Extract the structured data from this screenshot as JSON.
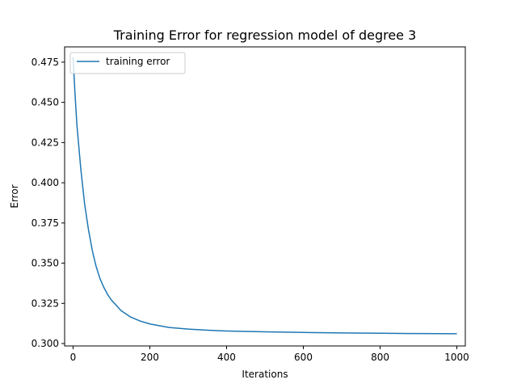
{
  "chart_data": {
    "type": "line",
    "title": "Training Error for regression model of degree 3",
    "xlabel": "Iterations",
    "ylabel": "Error",
    "xlim": [
      -22,
      1022
    ],
    "ylim": [
      0.2985,
      0.4845
    ],
    "xticks": [
      0,
      200,
      400,
      600,
      800,
      1000
    ],
    "xtick_labels": [
      "0",
      "200",
      "400",
      "600",
      "800",
      "1000"
    ],
    "yticks": [
      0.3,
      0.325,
      0.35,
      0.375,
      0.4,
      0.425,
      0.45,
      0.475
    ],
    "ytick_labels": [
      "0.300",
      "0.325",
      "0.350",
      "0.375",
      "0.400",
      "0.425",
      "0.450",
      "0.475"
    ],
    "grid": false,
    "legend_position": "upper-left",
    "series": [
      {
        "name": "training error",
        "color": "#1f77b4",
        "x": [
          0,
          5,
          10,
          20,
          30,
          40,
          50,
          60,
          70,
          80,
          90,
          100,
          125,
          150,
          175,
          200,
          250,
          300,
          350,
          400,
          500,
          600,
          700,
          800,
          900,
          1000
        ],
        "y": [
          0.478,
          0.4555,
          0.436,
          0.409,
          0.387,
          0.371,
          0.358,
          0.348,
          0.3405,
          0.335,
          0.3305,
          0.327,
          0.3205,
          0.3165,
          0.314,
          0.3122,
          0.31,
          0.309,
          0.3083,
          0.3078,
          0.3073,
          0.3069,
          0.3066,
          0.3064,
          0.3062,
          0.3061
        ]
      }
    ]
  }
}
